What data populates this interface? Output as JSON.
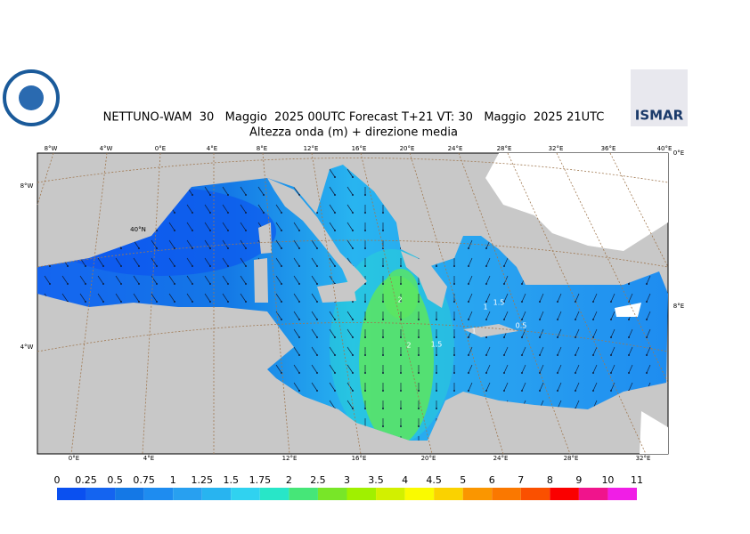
{
  "header": {
    "title": "NETTUNO-WAM  30   Maggio  2025 00UTC Forecast T+21 VT: 30   Maggio  2025 21UTC",
    "subtitle": "Altezza onda (m) + direzione media",
    "logo_text": "ISMAR"
  },
  "map": {
    "top_labels": [
      "8°W",
      "4°W",
      "0°E",
      "4°E",
      "8°E",
      "12°E",
      "16°E",
      "20°E",
      "24°E",
      "28°E",
      "32°E",
      "36°E",
      "40°E"
    ],
    "bottom_labels": [
      "0°E",
      "4°E",
      "12°E",
      "16°E",
      "20°E",
      "24°E",
      "28°E",
      "32°E"
    ],
    "side_labels": [
      "8°W",
      "4°W",
      "40°N",
      "0°E",
      "8°E"
    ],
    "contour_labels": [
      "2",
      "2",
      "1.5",
      "1",
      "1",
      "1.5",
      "0.5"
    ]
  },
  "colorbar": {
    "ticks": [
      0,
      0.25,
      0.5,
      0.75,
      1,
      1.25,
      1.5,
      1.75,
      2,
      2.5,
      3,
      3.5,
      4,
      4.5,
      5,
      6,
      7,
      8,
      9,
      10,
      11
    ],
    "colors": [
      "#0a50f0",
      "#1464f0",
      "#1478e6",
      "#1e8cf0",
      "#28a0f0",
      "#28b4f0",
      "#30d2f0",
      "#28e6c8",
      "#46e678",
      "#78e628",
      "#a0f000",
      "#d2f000",
      "#fafa00",
      "#fad200",
      "#fa9600",
      "#fa7800",
      "#fa5000",
      "#fa0000",
      "#f0148c",
      "#f01ee6"
    ]
  }
}
